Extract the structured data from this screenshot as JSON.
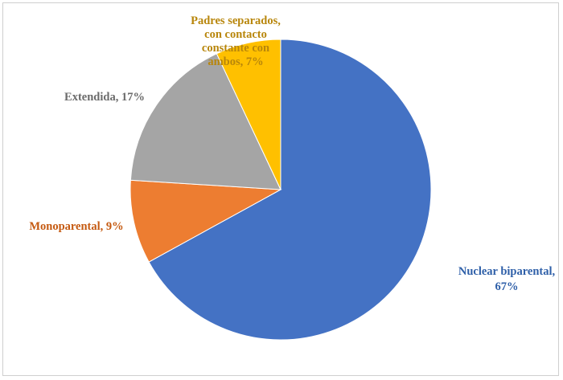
{
  "chart_data": {
    "type": "pie",
    "slices": [
      {
        "name": "Nuclear biparental",
        "value": 67,
        "color": "#4472C4",
        "label_lines": [
          "Nuclear biparental,",
          "67%"
        ],
        "label_color": "#2E5FA8"
      },
      {
        "name": "Monoparental",
        "value": 9,
        "color": "#ED7D31",
        "label_lines": [
          "Monoparental, 9%"
        ],
        "label_color": "#C55A11"
      },
      {
        "name": "Extendida",
        "value": 17,
        "color": "#A5A5A5",
        "label_lines": [
          "Extendida, 17%"
        ],
        "label_color": "#6B6B6B"
      },
      {
        "name": "Padres separados, con contacto constante con ambos",
        "value": 7,
        "color": "#FFC000",
        "label_lines": [
          "Padres separados,",
          "con contacto",
          "constante con",
          "ambos, 7%"
        ],
        "label_color": "#B8860B"
      }
    ],
    "legend": "none",
    "title": ""
  }
}
